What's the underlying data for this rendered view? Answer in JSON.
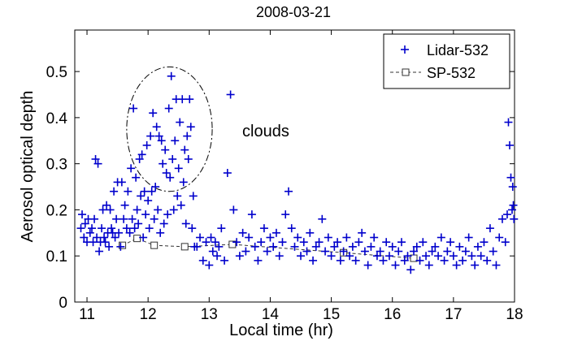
{
  "chart_data": {
    "type": "scatter",
    "title": "2008-03-21",
    "xlabel": "Local time (hr)",
    "ylabel": "Aerosol optical depth",
    "xlim": [
      10.8,
      18.0
    ],
    "ylim": [
      0,
      0.59
    ],
    "xticks": [
      "11",
      "12",
      "13",
      "14",
      "15",
      "16",
      "17",
      "18"
    ],
    "yticks": [
      "0",
      "0.1",
      "0.2",
      "0.3",
      "0.4",
      "0.5"
    ],
    "annotation": "clouds",
    "colors": {
      "lidar": "#0000cc",
      "sp": "#333333"
    },
    "series": [
      {
        "name": "Lidar-532",
        "marker": "plus",
        "points": [
          [
            10.9,
            0.16
          ],
          [
            10.92,
            0.19
          ],
          [
            10.95,
            0.14
          ],
          [
            10.97,
            0.17
          ],
          [
            11.0,
            0.13
          ],
          [
            11.02,
            0.18
          ],
          [
            11.05,
            0.15
          ],
          [
            11.08,
            0.16
          ],
          [
            11.1,
            0.13
          ],
          [
            11.12,
            0.18
          ],
          [
            11.14,
            0.31
          ],
          [
            11.16,
            0.14
          ],
          [
            11.18,
            0.3
          ],
          [
            11.2,
            0.11
          ],
          [
            11.22,
            0.13
          ],
          [
            11.24,
            0.16
          ],
          [
            11.26,
            0.2
          ],
          [
            11.28,
            0.14
          ],
          [
            11.3,
            0.13
          ],
          [
            11.32,
            0.21
          ],
          [
            11.34,
            0.15
          ],
          [
            11.36,
            0.12
          ],
          [
            11.38,
            0.2
          ],
          [
            11.4,
            0.16
          ],
          [
            11.42,
            0.15
          ],
          [
            11.44,
            0.24
          ],
          [
            11.46,
            0.14
          ],
          [
            11.48,
            0.18
          ],
          [
            11.5,
            0.26
          ],
          [
            11.52,
            0.15
          ],
          [
            11.55,
            0.12
          ],
          [
            11.57,
            0.26
          ],
          [
            11.6,
            0.18
          ],
          [
            11.62,
            0.21
          ],
          [
            11.65,
            0.16
          ],
          [
            11.67,
            0.24
          ],
          [
            11.7,
            0.15
          ],
          [
            11.72,
            0.29
          ],
          [
            11.74,
            0.18
          ],
          [
            11.76,
            0.42
          ],
          [
            11.78,
            0.16
          ],
          [
            11.8,
            0.27
          ],
          [
            11.82,
            0.2
          ],
          [
            11.84,
            0.17
          ],
          [
            11.86,
            0.31
          ],
          [
            11.88,
            0.23
          ],
          [
            11.9,
            0.32
          ],
          [
            11.92,
            0.14
          ],
          [
            11.94,
            0.24
          ],
          [
            11.96,
            0.19
          ],
          [
            11.98,
            0.34
          ],
          [
            12.0,
            0.22
          ],
          [
            12.02,
            0.16
          ],
          [
            12.04,
            0.36
          ],
          [
            12.06,
            0.24
          ],
          [
            12.08,
            0.41
          ],
          [
            12.1,
            0.18
          ],
          [
            12.12,
            0.25
          ],
          [
            12.14,
            0.38
          ],
          [
            12.16,
            0.2
          ],
          [
            12.18,
            0.36
          ],
          [
            12.2,
            0.15
          ],
          [
            12.22,
            0.35
          ],
          [
            12.24,
            0.3
          ],
          [
            12.26,
            0.17
          ],
          [
            12.28,
            0.33
          ],
          [
            12.3,
            0.28
          ],
          [
            12.32,
            0.19
          ],
          [
            12.34,
            0.42
          ],
          [
            12.36,
            0.27
          ],
          [
            12.38,
            0.49
          ],
          [
            12.4,
            0.31
          ],
          [
            12.42,
            0.2
          ],
          [
            12.44,
            0.35
          ],
          [
            12.46,
            0.44
          ],
          [
            12.48,
            0.23
          ],
          [
            12.5,
            0.29
          ],
          [
            12.52,
            0.39
          ],
          [
            12.54,
            0.21
          ],
          [
            12.56,
            0.44
          ],
          [
            12.58,
            0.26
          ],
          [
            12.6,
            0.33
          ],
          [
            12.62,
            0.17
          ],
          [
            12.64,
            0.36
          ],
          [
            12.66,
            0.31
          ],
          [
            12.68,
            0.44
          ],
          [
            12.7,
            0.38
          ],
          [
            12.72,
            0.16
          ],
          [
            12.74,
            0.23
          ],
          [
            12.76,
            0.12
          ],
          [
            12.8,
            0.12
          ],
          [
            12.85,
            0.14
          ],
          [
            12.9,
            0.09
          ],
          [
            12.95,
            0.13
          ],
          [
            13.0,
            0.08
          ],
          [
            13.03,
            0.14
          ],
          [
            13.06,
            0.11
          ],
          [
            13.1,
            0.13
          ],
          [
            13.13,
            0.1
          ],
          [
            13.16,
            0.12
          ],
          [
            13.2,
            0.16
          ],
          [
            13.25,
            0.09
          ],
          [
            13.3,
            0.28
          ],
          [
            13.35,
            0.45
          ],
          [
            13.4,
            0.2
          ],
          [
            13.45,
            0.13
          ],
          [
            13.5,
            0.1
          ],
          [
            13.55,
            0.15
          ],
          [
            13.6,
            0.11
          ],
          [
            13.65,
            0.14
          ],
          [
            13.7,
            0.19
          ],
          [
            13.75,
            0.12
          ],
          [
            13.8,
            0.09
          ],
          [
            13.85,
            0.13
          ],
          [
            13.9,
            0.16
          ],
          [
            13.95,
            0.11
          ],
          [
            14.0,
            0.14
          ],
          [
            14.05,
            0.12
          ],
          [
            14.1,
            0.15
          ],
          [
            14.15,
            0.1
          ],
          [
            14.2,
            0.13
          ],
          [
            14.25,
            0.19
          ],
          [
            14.3,
            0.24
          ],
          [
            14.35,
            0.16
          ],
          [
            14.4,
            0.12
          ],
          [
            14.45,
            0.14
          ],
          [
            14.5,
            0.1
          ],
          [
            14.55,
            0.13
          ],
          [
            14.6,
            0.11
          ],
          [
            14.65,
            0.15
          ],
          [
            14.7,
            0.09
          ],
          [
            14.75,
            0.12
          ],
          [
            14.8,
            0.13
          ],
          [
            14.85,
            0.18
          ],
          [
            14.9,
            0.11
          ],
          [
            14.95,
            0.14
          ],
          [
            15.0,
            0.1
          ],
          [
            15.05,
            0.12
          ],
          [
            15.1,
            0.13
          ],
          [
            15.15,
            0.09
          ],
          [
            15.2,
            0.11
          ],
          [
            15.25,
            0.14
          ],
          [
            15.3,
            0.1
          ],
          [
            15.35,
            0.12
          ],
          [
            15.4,
            0.09
          ],
          [
            15.45,
            0.13
          ],
          [
            15.5,
            0.15
          ],
          [
            15.55,
            0.11
          ],
          [
            15.6,
            0.08
          ],
          [
            15.65,
            0.12
          ],
          [
            15.7,
            0.14
          ],
          [
            15.75,
            0.1
          ],
          [
            15.8,
            0.11
          ],
          [
            15.85,
            0.09
          ],
          [
            15.9,
            0.13
          ],
          [
            15.95,
            0.1
          ],
          [
            16.0,
            0.12
          ],
          [
            16.05,
            0.08
          ],
          [
            16.1,
            0.11
          ],
          [
            16.15,
            0.13
          ],
          [
            16.2,
            0.09
          ],
          [
            16.25,
            0.1
          ],
          [
            16.3,
            0.07
          ],
          [
            16.35,
            0.11
          ],
          [
            16.4,
            0.12
          ],
          [
            16.45,
            0.09
          ],
          [
            16.5,
            0.13
          ],
          [
            16.55,
            0.1
          ],
          [
            16.6,
            0.08
          ],
          [
            16.65,
            0.11
          ],
          [
            16.7,
            0.12
          ],
          [
            16.75,
            0.1
          ],
          [
            16.8,
            0.14
          ],
          [
            16.85,
            0.09
          ],
          [
            16.9,
            0.11
          ],
          [
            16.95,
            0.13
          ],
          [
            17.0,
            0.1
          ],
          [
            17.05,
            0.08
          ],
          [
            17.1,
            0.12
          ],
          [
            17.15,
            0.09
          ],
          [
            17.2,
            0.11
          ],
          [
            17.25,
            0.14
          ],
          [
            17.3,
            0.1
          ],
          [
            17.35,
            0.08
          ],
          [
            17.4,
            0.12
          ],
          [
            17.45,
            0.1
          ],
          [
            17.5,
            0.13
          ],
          [
            17.55,
            0.09
          ],
          [
            17.6,
            0.16
          ],
          [
            17.65,
            0.11
          ],
          [
            17.7,
            0.08
          ],
          [
            17.75,
            0.14
          ],
          [
            17.8,
            0.18
          ],
          [
            17.85,
            0.13
          ],
          [
            17.88,
            0.19
          ],
          [
            17.9,
            0.39
          ],
          [
            17.92,
            0.34
          ],
          [
            17.94,
            0.27
          ],
          [
            17.96,
            0.2
          ],
          [
            17.97,
            0.25
          ],
          [
            17.98,
            0.21
          ],
          [
            17.99,
            0.18
          ]
        ]
      },
      {
        "name": "SP-532",
        "marker": "square",
        "points": [
          [
            11.58,
            0.123
          ],
          [
            11.82,
            0.138
          ],
          [
            12.1,
            0.123
          ],
          [
            12.6,
            0.12
          ],
          [
            13.38,
            0.125
          ],
          [
            15.2,
            0.107
          ],
          [
            16.35,
            0.095
          ]
        ]
      }
    ]
  }
}
